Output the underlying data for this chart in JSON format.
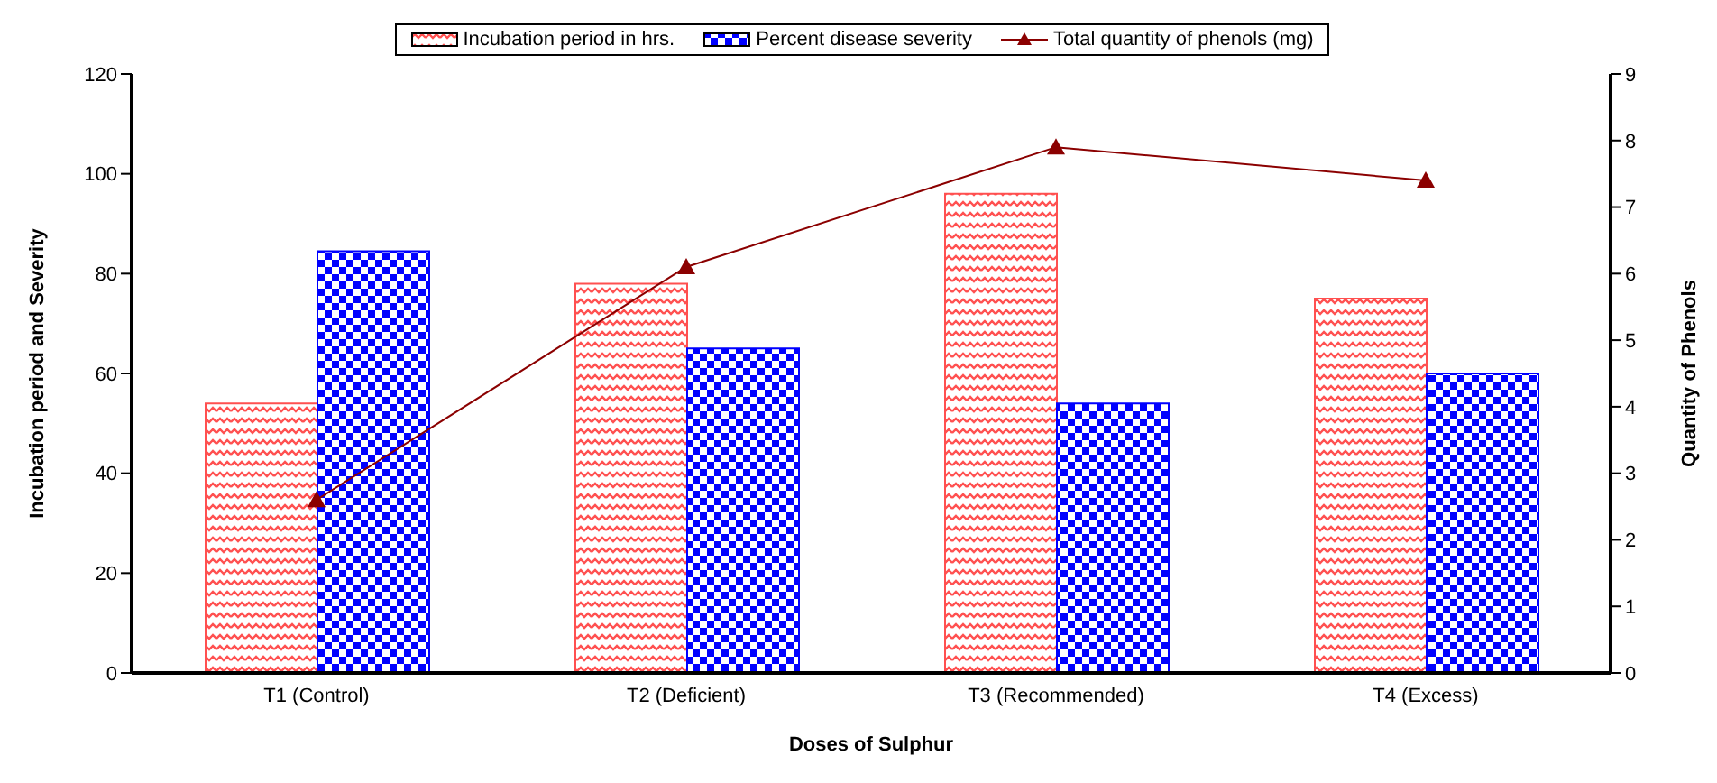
{
  "chart_data": {
    "type": "bar",
    "xlabel": "Doses of Sulphur",
    "ylabel": "Incubation period and Severity",
    "y2label": "Quantity of Phenols",
    "categories": [
      "T1 (Control)",
      "T2 (Deficient)",
      "T3 (Recommended)",
      "T4 (Excess)"
    ],
    "series": [
      {
        "name": "Incubation period in hrs.",
        "color": "#ff5050",
        "values": [
          54,
          78,
          96,
          75
        ]
      },
      {
        "name": "Percent disease severity",
        "color": "#0000ff",
        "values": [
          84.5,
          65,
          54,
          60
        ]
      },
      {
        "name": "Total quantity of phenols (mg)",
        "type": "line",
        "axis": "y2",
        "color": "#8b0000",
        "values": [
          2.6,
          6.1,
          7.9,
          7.4
        ]
      }
    ],
    "ylim": [
      0,
      120
    ],
    "yticks": [
      0,
      20,
      40,
      60,
      80,
      100,
      120
    ],
    "y2lim": [
      0,
      9
    ],
    "y2ticks": [
      0,
      1,
      2,
      3,
      4,
      5,
      6,
      7,
      8,
      9
    ],
    "grid": false,
    "legend": "top",
    "marker": "triangle"
  }
}
